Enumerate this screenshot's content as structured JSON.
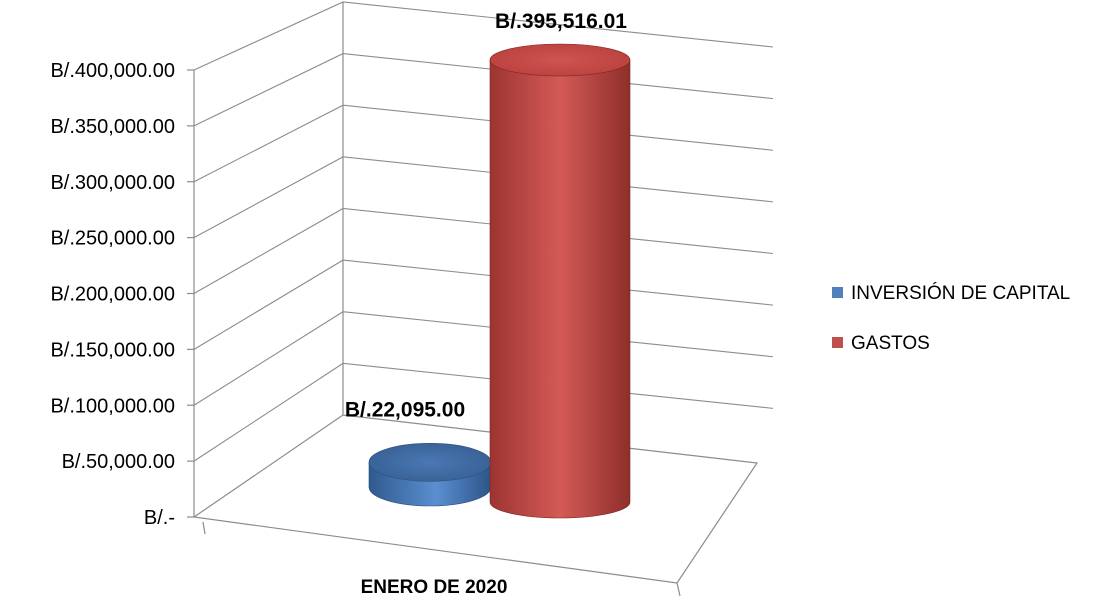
{
  "chart_data": {
    "type": "bar",
    "style": "3d-cylinder",
    "categories": [
      "ENERO DE 2020"
    ],
    "series": [
      {
        "name": "INVERSIÓN DE CAPITAL",
        "values": [
          22095.0
        ],
        "data_label": "B/.22,095.00",
        "color": "#4F81BD"
      },
      {
        "name": "GASTOS",
        "values": [
          395516.01
        ],
        "data_label": "B/.395,516.01",
        "color": "#C0504D"
      }
    ],
    "y_ticks": [
      {
        "value": 0,
        "label": "B/.-"
      },
      {
        "value": 50000,
        "label": "B/.50,000.00"
      },
      {
        "value": 100000,
        "label": "B/.100,000.00"
      },
      {
        "value": 150000,
        "label": "B/.150,000.00"
      },
      {
        "value": 200000,
        "label": "B/.200,000.00"
      },
      {
        "value": 250000,
        "label": "B/.250,000.00"
      },
      {
        "value": 300000,
        "label": "B/.300,000.00"
      },
      {
        "value": 350000,
        "label": "B/.350,000.00"
      },
      {
        "value": 400000,
        "label": "B/.400,000.00"
      }
    ],
    "ylim": [
      0,
      400000
    ],
    "grid": true,
    "legend_position": "right"
  }
}
